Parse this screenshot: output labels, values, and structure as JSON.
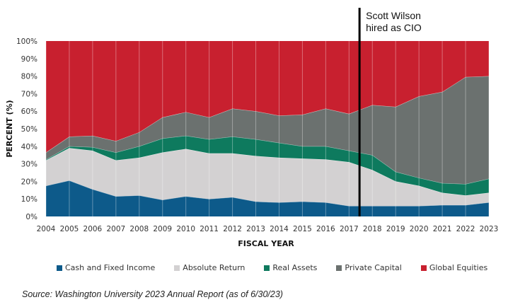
{
  "chart_data": {
    "type": "area",
    "stacked": true,
    "title": "",
    "xlabel": "FISCAL YEAR",
    "ylabel": "PERCENT (%)",
    "ylim": [
      0,
      100
    ],
    "y_ticks": [
      "0%",
      "10%",
      "20%",
      "30%",
      "40%",
      "50%",
      "60%",
      "70%",
      "80%",
      "90%",
      "100%"
    ],
    "x": [
      "2004",
      "2005",
      "2006",
      "2007",
      "2008",
      "2009",
      "2010",
      "2011",
      "2012",
      "2013",
      "2014",
      "2015",
      "2016",
      "2017",
      "2018",
      "2019",
      "2020",
      "2021",
      "2022",
      "2023"
    ],
    "series": [
      {
        "name": "Cash and Fixed Income",
        "color": "#0d5a8a",
        "values": [
          17.5,
          20.5,
          15.5,
          11.5,
          12.0,
          9.5,
          11.5,
          10.0,
          11.0,
          8.5,
          8.0,
          8.5,
          8.0,
          6.0,
          6.0,
          6.0,
          6.0,
          6.5,
          6.5,
          8.0
        ]
      },
      {
        "name": "Absolute Return",
        "color": "#d3d1d2",
        "values": [
          14.5,
          18.5,
          22.0,
          20.5,
          21.5,
          27.0,
          27.0,
          26.0,
          25.0,
          26.0,
          25.5,
          24.5,
          24.5,
          25.0,
          20.5,
          14.0,
          11.5,
          7.0,
          5.5,
          5.5
        ]
      },
      {
        "name": "Real Assets",
        "color": "#0e7a5e",
        "values": [
          0.5,
          1.0,
          2.0,
          4.5,
          6.5,
          8.0,
          7.5,
          8.0,
          9.5,
          9.5,
          8.5,
          7.0,
          7.5,
          6.5,
          8.5,
          5.5,
          4.5,
          5.5,
          6.5,
          8.0
        ]
      },
      {
        "name": "Private Capital",
        "color": "#6b716f",
        "values": [
          4.0,
          5.5,
          6.5,
          6.5,
          8.0,
          12.0,
          13.5,
          12.5,
          16.0,
          16.0,
          15.5,
          18.0,
          21.5,
          21.0,
          28.5,
          37.0,
          46.5,
          52.0,
          61.0,
          58.5
        ]
      },
      {
        "name": "Global Equities",
        "color": "#c8202f",
        "values": [
          63.5,
          54.5,
          54.0,
          57.0,
          52.0,
          43.5,
          40.5,
          43.5,
          38.5,
          40.0,
          42.5,
          42.0,
          38.5,
          41.5,
          36.5,
          37.5,
          31.5,
          29.0,
          20.5,
          20.0
        ]
      }
    ],
    "annotations": [
      {
        "text_lines": [
          "Scott Wilson",
          "hired as CIO"
        ],
        "x_position": 2017.45
      }
    ],
    "legend_position": "bottom",
    "grid": false,
    "vertical_year_lines": true
  },
  "source_note": "Source: Washington University 2023 Annual Report (as of 6/30/23)"
}
